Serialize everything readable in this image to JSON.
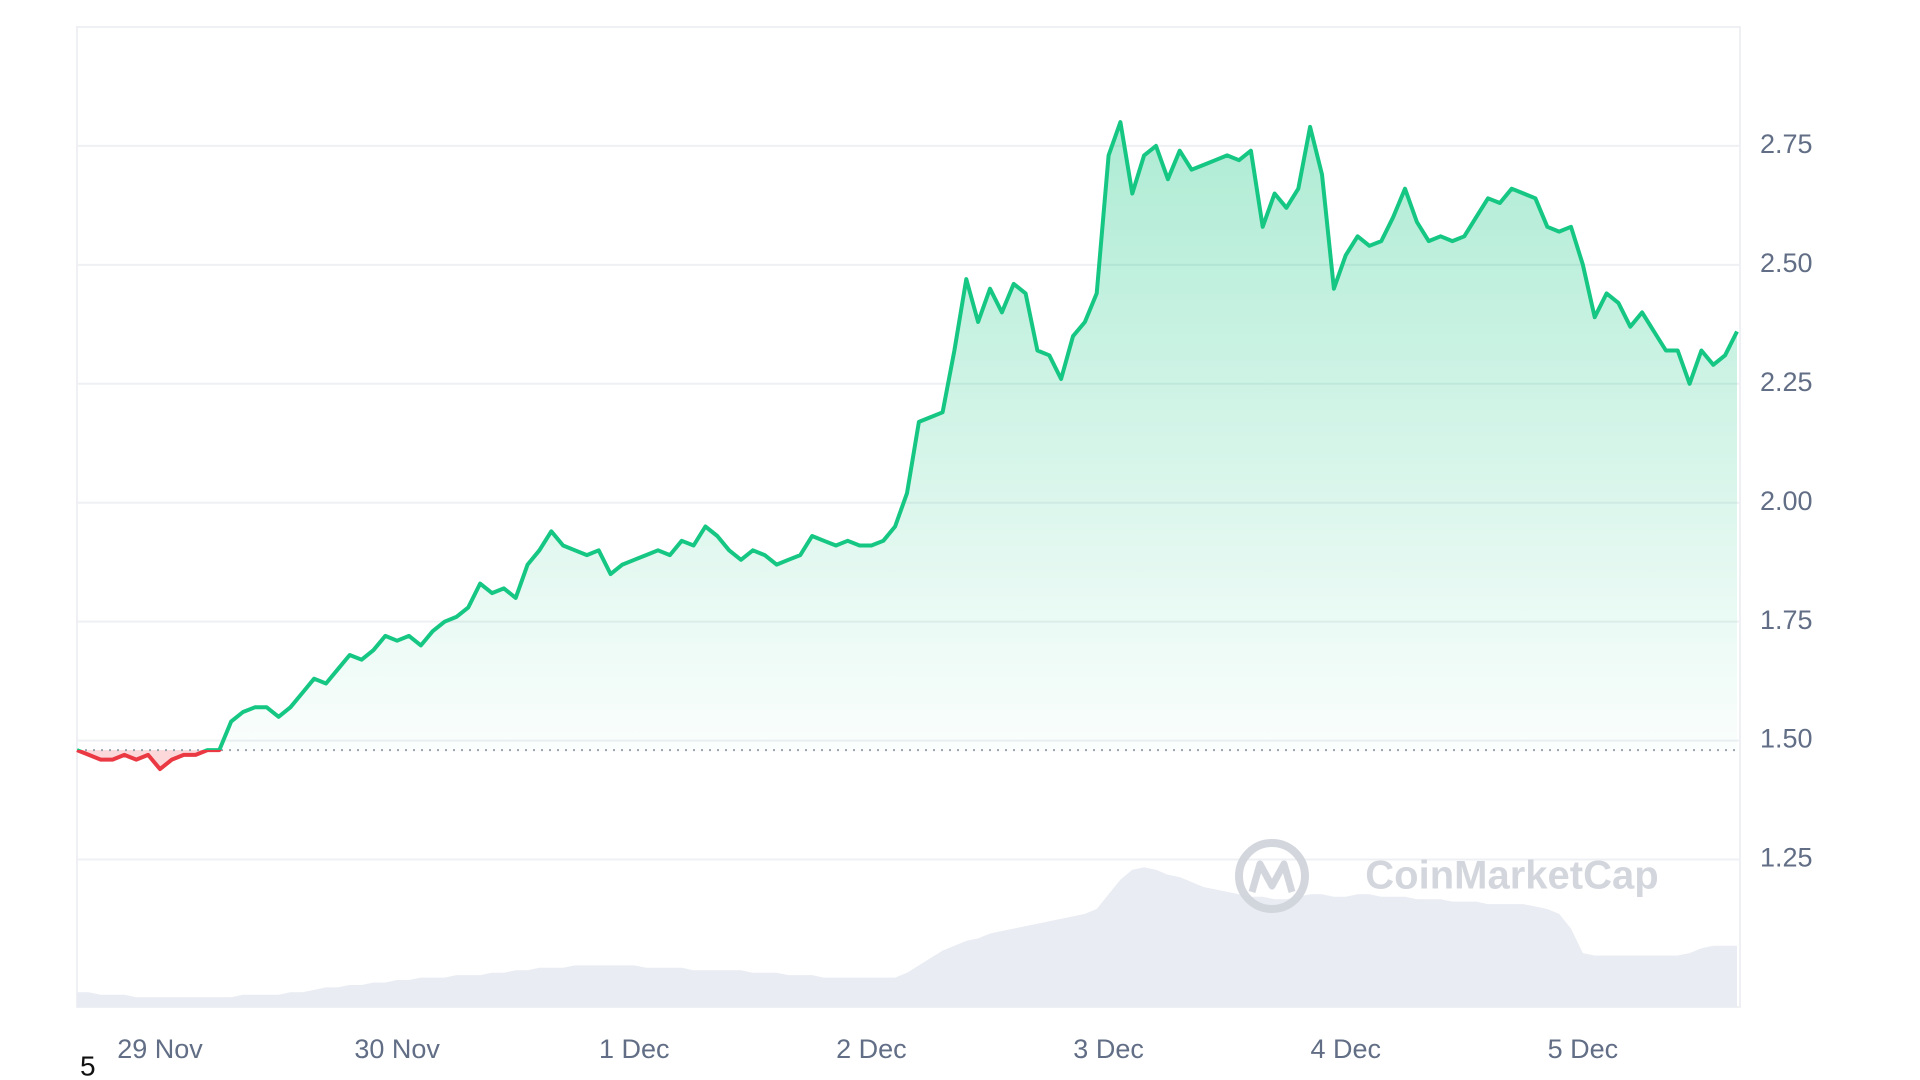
{
  "chart_data": {
    "type": "line",
    "categories": [
      null,
      null,
      null,
      null,
      null,
      null,
      null,
      "29 Nov",
      null,
      null,
      null,
      null,
      null,
      null,
      null,
      null,
      null,
      null,
      null,
      null,
      null,
      null,
      null,
      null,
      null,
      null,
      null,
      "30 Nov",
      null,
      null,
      null,
      null,
      null,
      null,
      null,
      null,
      null,
      null,
      null,
      null,
      null,
      null,
      null,
      null,
      null,
      null,
      null,
      "1 Dec",
      null,
      null,
      null,
      null,
      null,
      null,
      null,
      null,
      null,
      null,
      null,
      null,
      null,
      null,
      null,
      null,
      null,
      null,
      null,
      "2 Dec",
      null,
      null,
      null,
      null,
      null,
      null,
      null,
      null,
      null,
      null,
      null,
      null,
      null,
      null,
      null,
      null,
      null,
      null,
      null,
      "3 Dec",
      null,
      null,
      null,
      null,
      null,
      null,
      null,
      null,
      null,
      null,
      null,
      null,
      null,
      null,
      null,
      null,
      null,
      null,
      null,
      "4 Dec",
      null,
      null,
      null,
      null,
      null,
      null,
      null,
      null,
      null,
      null,
      null,
      null,
      null,
      null,
      null,
      null,
      null,
      null,
      null,
      "5 Dec",
      null,
      null,
      null,
      null,
      null,
      null,
      null,
      null,
      null,
      null,
      null,
      null,
      null
    ],
    "series": [
      {
        "name": "Price",
        "color": "#16c784",
        "below_color": "#ea3943",
        "values": [
          1.48,
          1.47,
          1.46,
          1.46,
          1.47,
          1.46,
          1.47,
          1.44,
          1.46,
          1.47,
          1.47,
          1.48,
          1.48,
          1.54,
          1.56,
          1.57,
          1.57,
          1.55,
          1.57,
          1.6,
          1.63,
          1.62,
          1.65,
          1.68,
          1.67,
          1.69,
          1.72,
          1.71,
          1.72,
          1.7,
          1.73,
          1.75,
          1.76,
          1.78,
          1.83,
          1.81,
          1.82,
          1.8,
          1.87,
          1.9,
          1.94,
          1.91,
          1.9,
          1.89,
          1.9,
          1.85,
          1.87,
          1.88,
          1.89,
          1.9,
          1.89,
          1.92,
          1.91,
          1.95,
          1.93,
          1.9,
          1.88,
          1.9,
          1.89,
          1.87,
          1.88,
          1.89,
          1.93,
          1.92,
          1.91,
          1.92,
          1.91,
          1.91,
          1.92,
          1.95,
          2.02,
          2.17,
          2.18,
          2.19,
          2.32,
          2.47,
          2.38,
          2.45,
          2.4,
          2.46,
          2.44,
          2.32,
          2.31,
          2.26,
          2.35,
          2.38,
          2.44,
          2.73,
          2.8,
          2.65,
          2.73,
          2.75,
          2.68,
          2.74,
          2.7,
          2.71,
          2.72,
          2.73,
          2.72,
          2.74,
          2.58,
          2.65,
          2.62,
          2.66,
          2.79,
          2.69,
          2.45,
          2.52,
          2.56,
          2.54,
          2.55,
          2.6,
          2.66,
          2.59,
          2.55,
          2.56,
          2.55,
          2.56,
          2.6,
          2.64,
          2.63,
          2.66,
          2.65,
          2.64,
          2.58,
          2.57,
          2.58,
          2.5,
          2.39,
          2.44,
          2.42,
          2.37,
          2.4,
          2.36,
          2.32,
          2.32,
          2.25,
          2.32,
          2.29,
          2.31,
          2.36
        ]
      },
      {
        "name": "Volume",
        "color": "#e9ecf2",
        "axis": "y2",
        "values": [
          6,
          6,
          5,
          5,
          5,
          4,
          4,
          4,
          4,
          4,
          4,
          4,
          4,
          4,
          5,
          5,
          5,
          5,
          6,
          6,
          7,
          8,
          8,
          9,
          9,
          10,
          10,
          11,
          11,
          12,
          12,
          12,
          13,
          13,
          13,
          14,
          14,
          15,
          15,
          16,
          16,
          16,
          17,
          17,
          17,
          17,
          17,
          17,
          16,
          16,
          16,
          16,
          15,
          15,
          15,
          15,
          15,
          14,
          14,
          14,
          13,
          13,
          13,
          12,
          12,
          12,
          12,
          12,
          12,
          12,
          14,
          17,
          20,
          23,
          25,
          27,
          28,
          30,
          31,
          32,
          33,
          34,
          35,
          36,
          37,
          38,
          40,
          46,
          52,
          56,
          57,
          56,
          54,
          53,
          51,
          49,
          48,
          47,
          46,
          45,
          45,
          44,
          44,
          45,
          46,
          46,
          45,
          45,
          46,
          46,
          45,
          45,
          45,
          44,
          44,
          44,
          43,
          43,
          43,
          42,
          42,
          42,
          42,
          41,
          40,
          38,
          32,
          22,
          21,
          21,
          21,
          21,
          21,
          21,
          21,
          21,
          22,
          24,
          25,
          25,
          25
        ]
      }
    ],
    "reference": 1.48,
    "ylim": [
      0.94,
      3.0
    ],
    "yticks": [
      1.25,
      {
        "value": 1.5,
        "label": "1.50"
      },
      1.75,
      {
        "value": 2.0,
        "label": "2.00"
      },
      2.25,
      {
        "value": 2.5,
        "label": "2.50"
      },
      2.75
    ],
    "y2lim": [
      0,
      400
    ],
    "grid": true,
    "watermark": "CoinMarketCap",
    "footnote": "5"
  }
}
